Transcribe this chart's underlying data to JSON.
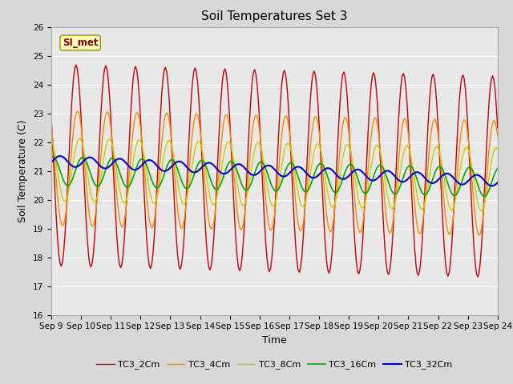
{
  "title": "Soil Temperatures Set 3",
  "xlabel": "Time",
  "ylabel": "Soil Temperature (C)",
  "ylim": [
    16.0,
    26.0
  ],
  "yticks": [
    16.0,
    17.0,
    18.0,
    19.0,
    20.0,
    21.0,
    22.0,
    23.0,
    24.0,
    25.0,
    26.0
  ],
  "xtick_labels": [
    "Sep 9",
    "Sep 10",
    "Sep 11",
    "Sep 12",
    "Sep 13",
    "Sep 14",
    "Sep 15",
    "Sep 16",
    "Sep 17",
    "Sep 18",
    "Sep 19",
    "Sep 20",
    "Sep 21",
    "Sep 22",
    "Sep 23",
    "Sep 24"
  ],
  "legend_labels": [
    "TC3_2Cm",
    "TC3_4Cm",
    "TC3_8Cm",
    "TC3_16Cm",
    "TC3_32Cm"
  ],
  "line_colors": [
    "#cc0000",
    "#ff8800",
    "#cccc00",
    "#00aa00",
    "#0000cc"
  ],
  "annotation_text": "SI_met",
  "annotation_color": "#880000",
  "annotation_bg": "#ffffbb",
  "fig_bg": "#d8d8d8",
  "plot_bg": "#e8e8e8",
  "grid_color": "#ffffff",
  "title_fontsize": 11,
  "label_fontsize": 9,
  "tick_fontsize": 7.5
}
